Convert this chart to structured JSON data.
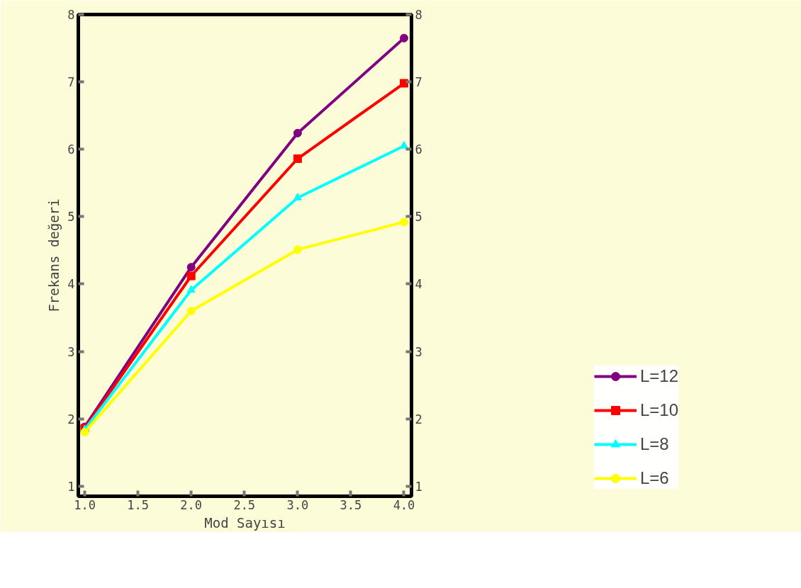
{
  "chart_data": {
    "type": "line",
    "xlabel": "Mod Sayısı",
    "ylabel": "Frekans değeri",
    "x": [
      1.0,
      2.0,
      3.0,
      4.0
    ],
    "series": [
      {
        "name": "L=12",
        "color": "#800080",
        "marker": "circle",
        "values": [
          1.88,
          4.25,
          6.24,
          7.65
        ]
      },
      {
        "name": "L=10",
        "color": "#ff0000",
        "marker": "square",
        "values": [
          1.86,
          4.12,
          5.86,
          6.98
        ]
      },
      {
        "name": "L=8",
        "color": "#00ffff",
        "marker": "triangle",
        "values": [
          1.84,
          3.91,
          5.28,
          6.05
        ]
      },
      {
        "name": "L=6",
        "color": "#ffff00",
        "marker": "circle",
        "values": [
          1.8,
          3.6,
          4.51,
          4.92
        ]
      }
    ],
    "xlim": [
      0.94,
      4.07
    ],
    "ylim": [
      0.85,
      8
    ],
    "xticks": [
      {
        "value": 1.0,
        "label": "1.0"
      },
      1.5,
      {
        "value": 2.0,
        "label": "2.0"
      },
      2.5,
      {
        "value": 3.0,
        "label": "3.0"
      },
      3.5,
      {
        "value": 4.0,
        "label": "4.0"
      }
    ],
    "yticks": [
      1,
      2,
      3,
      4,
      5,
      6,
      7,
      8
    ],
    "y2lim": [
      0.85,
      8
    ],
    "y2ticks": [
      1,
      2,
      3,
      4,
      5,
      6,
      7,
      8
    ],
    "grid": false,
    "legend": "bottom right",
    "line_style": "solid"
  }
}
